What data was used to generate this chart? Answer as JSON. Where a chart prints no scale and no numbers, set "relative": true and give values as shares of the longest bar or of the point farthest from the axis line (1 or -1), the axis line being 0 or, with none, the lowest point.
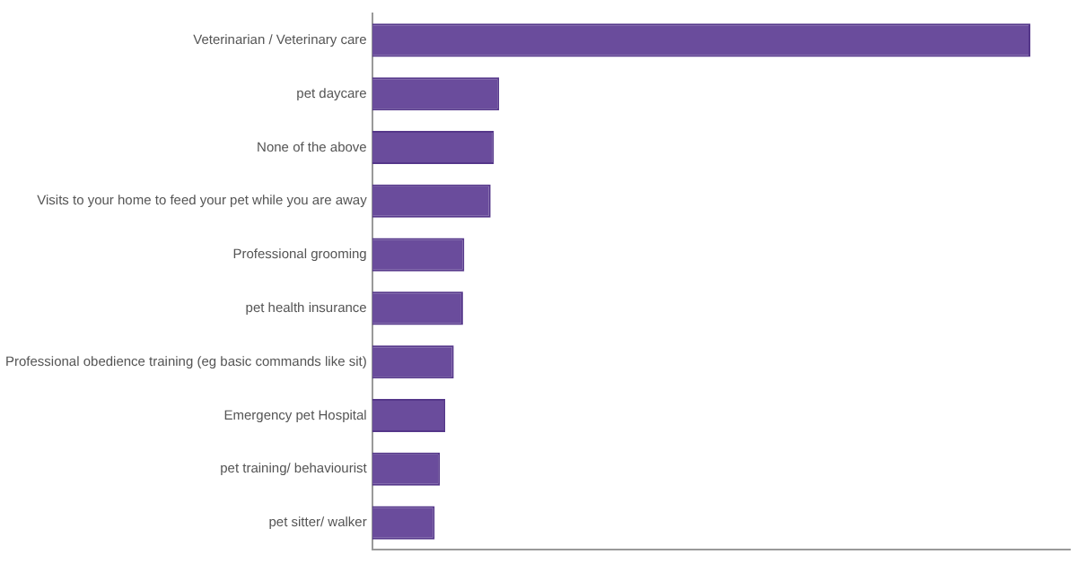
{
  "chart_data": {
    "type": "bar",
    "orientation": "horizontal",
    "relative": true,
    "categories": [
      "Veterinarian / Veterinary care",
      "pet daycare",
      "None of the above",
      "Visits to your home to feed your pet while you are away",
      "Professional grooming",
      "pet health insurance",
      "Professional obedience training (eg basic commands like sit)",
      "Emergency pet Hospital",
      "pet training/ behaviourist",
      "pet sitter/ walker"
    ],
    "values": [
      1,
      0.193,
      0.185,
      0.18,
      0.14,
      0.138,
      0.124,
      0.111,
      0.103,
      0.095
    ],
    "color": "#6a4c9c",
    "grid": false,
    "legend": false
  }
}
